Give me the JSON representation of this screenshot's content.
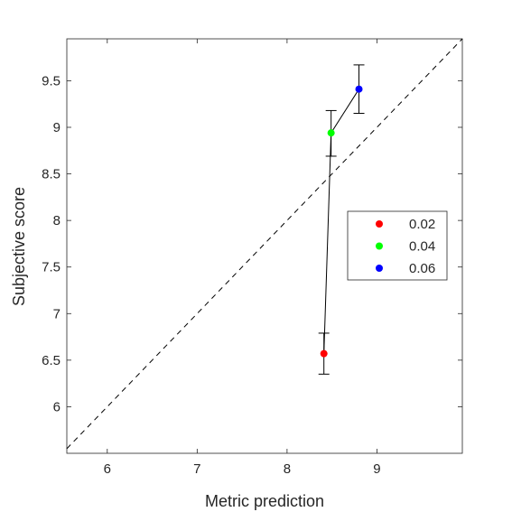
{
  "chart_data": {
    "type": "scatter",
    "xlabel": "Metric prediction",
    "ylabel": "Subjective score",
    "xlim": [
      5.55,
      9.95
    ],
    "ylim": [
      5.5,
      9.95
    ],
    "xticks": [
      6,
      7,
      8,
      9
    ],
    "yticks": [
      6,
      6.5,
      7,
      7.5,
      8,
      8.5,
      9,
      9.5
    ],
    "xtick_labels": [
      "6",
      "7",
      "8",
      "9"
    ],
    "ytick_labels": [
      "6",
      "6.5",
      "7",
      "7.5",
      "8",
      "8.5",
      "9",
      "9.5"
    ],
    "grid": false,
    "legend_position": "right",
    "reference_line": "identity (y = x), dashed",
    "series": [
      {
        "name": "0.02",
        "color": "#ff0000",
        "x": 8.41,
        "y": 6.57,
        "err_low": 6.35,
        "err_high": 6.79
      },
      {
        "name": "0.04",
        "color": "#00ff00",
        "x": 8.49,
        "y": 8.94,
        "err_low": 8.69,
        "err_high": 9.18
      },
      {
        "name": "0.06",
        "color": "#0000ff",
        "x": 8.8,
        "y": 9.41,
        "err_low": 9.15,
        "err_high": 9.67
      }
    ],
    "connecting_line_color": "#000000"
  }
}
